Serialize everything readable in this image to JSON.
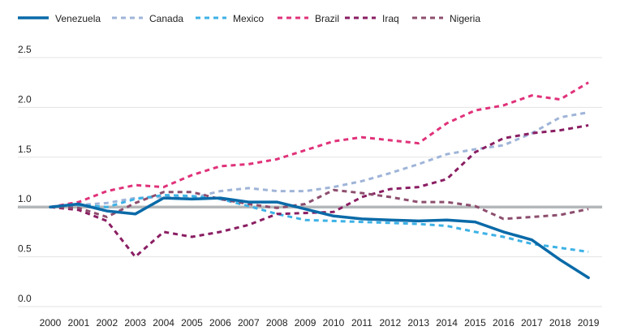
{
  "chart_data": {
    "type": "line",
    "title": "",
    "xlabel": "",
    "ylabel": "",
    "ylim": [
      0.0,
      2.5
    ],
    "y_ticks": [
      "0.0",
      "0.5",
      "1.0",
      "1.5",
      "2.0",
      "2.5"
    ],
    "x": [
      "2000",
      "2001",
      "2002",
      "2003",
      "2004",
      "2005",
      "2006",
      "2007",
      "2008",
      "2009",
      "2010",
      "2011",
      "2012",
      "2013",
      "2014",
      "2015",
      "2016",
      "2017",
      "2018",
      "2019"
    ],
    "grid": true,
    "legend_position": "top",
    "reference_line": 1.0,
    "series": [
      {
        "name": "Venezuela",
        "style": "solid",
        "color": "#0a6aa8",
        "values": [
          1.0,
          1.03,
          0.96,
          0.93,
          1.09,
          1.08,
          1.09,
          1.05,
          1.05,
          0.98,
          0.91,
          0.88,
          0.87,
          0.86,
          0.87,
          0.85,
          0.75,
          0.67,
          0.47,
          0.29
        ]
      },
      {
        "name": "Canada",
        "style": "dashed",
        "color": "#9fb4d8",
        "values": [
          1.0,
          1.02,
          1.04,
          1.09,
          1.1,
          1.09,
          1.16,
          1.19,
          1.16,
          1.16,
          1.2,
          1.26,
          1.34,
          1.43,
          1.53,
          1.58,
          1.62,
          1.74,
          1.9,
          1.95
        ]
      },
      {
        "name": "Mexico",
        "style": "dashed",
        "color": "#3db2e6",
        "values": [
          1.0,
          1.02,
          1.0,
          1.08,
          1.12,
          1.11,
          1.08,
          1.01,
          0.93,
          0.87,
          0.86,
          0.85,
          0.84,
          0.83,
          0.81,
          0.75,
          0.7,
          0.63,
          0.59,
          0.55
        ]
      },
      {
        "name": "Brazil",
        "style": "dashed",
        "color": "#e0327a",
        "values": [
          1.0,
          1.05,
          1.16,
          1.22,
          1.2,
          1.32,
          1.41,
          1.43,
          1.48,
          1.57,
          1.66,
          1.7,
          1.67,
          1.64,
          1.84,
          1.97,
          2.02,
          2.12,
          2.08,
          2.25
        ]
      },
      {
        "name": "Iraq",
        "style": "dashed",
        "color": "#8a1e63",
        "values": [
          1.0,
          0.97,
          0.86,
          0.5,
          0.75,
          0.7,
          0.75,
          0.82,
          0.93,
          0.94,
          0.95,
          1.1,
          1.18,
          1.2,
          1.28,
          1.55,
          1.69,
          1.74,
          1.77,
          1.82
        ]
      },
      {
        "name": "Nigeria",
        "style": "dashed",
        "color": "#8d4e6e",
        "values": [
          1.0,
          0.99,
          0.9,
          1.04,
          1.15,
          1.15,
          1.08,
          1.03,
          0.99,
          1.03,
          1.17,
          1.14,
          1.1,
          1.05,
          1.05,
          1.01,
          0.88,
          0.9,
          0.92,
          0.98
        ]
      }
    ]
  }
}
